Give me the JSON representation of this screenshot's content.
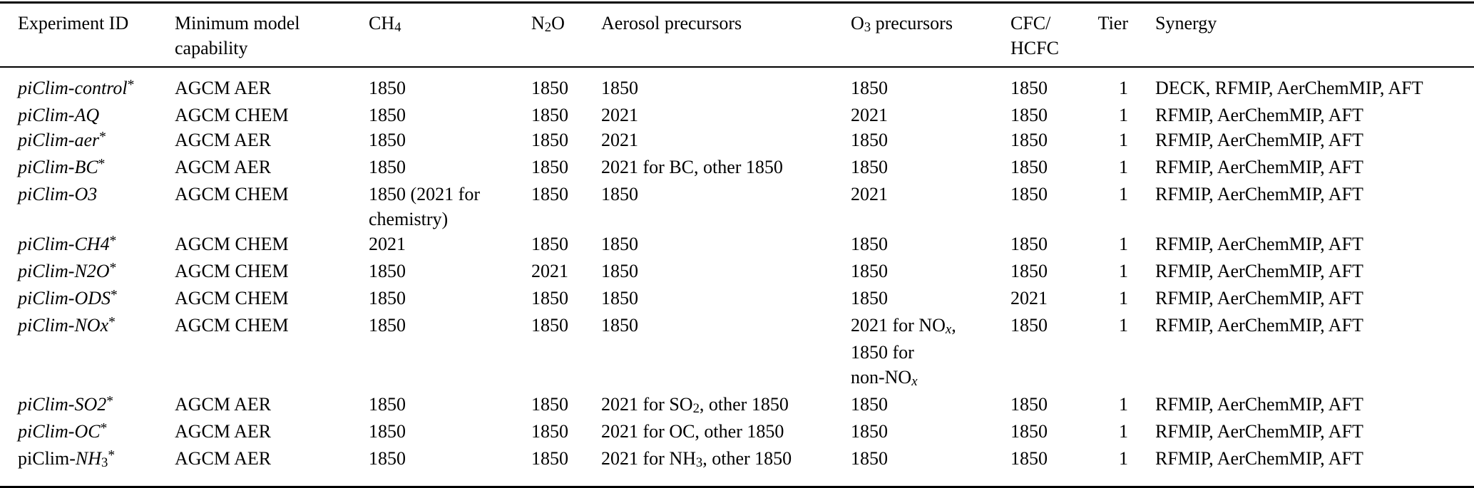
{
  "colors": {
    "text": "#000000",
    "background": "#ffffff",
    "rule": "#000000"
  },
  "table": {
    "columns": [
      {
        "id": "experiment-id",
        "label": "Experiment ID"
      },
      {
        "id": "min-model-capability",
        "label": "Minimum model capability"
      },
      {
        "id": "ch4",
        "label": [
          {
            "t": "CH"
          },
          {
            "t": "4",
            "s": "sub"
          }
        ]
      },
      {
        "id": "n2o",
        "label": [
          {
            "t": "N"
          },
          {
            "t": "2",
            "s": "sub"
          },
          {
            "t": "O"
          }
        ]
      },
      {
        "id": "aerosol-precursors",
        "label": "Aerosol precursors"
      },
      {
        "id": "o3-precursors",
        "label": [
          {
            "t": "O"
          },
          {
            "t": "3",
            "s": "sub"
          },
          {
            "t": " precursors"
          }
        ]
      },
      {
        "id": "cfc-hcfc",
        "label": [
          {
            "t": "CFC/"
          },
          {
            "s": "br"
          },
          {
            "t": "HCFC"
          }
        ]
      },
      {
        "id": "tier",
        "label": "Tier"
      },
      {
        "id": "synergy",
        "label": "Synergy"
      }
    ],
    "rows": [
      {
        "cells": [
          [
            {
              "t": "piClim-control",
              "s": "i"
            },
            {
              "t": "*",
              "s": "sup"
            }
          ],
          "AGCM AER",
          "1850",
          "1850",
          "1850",
          "1850",
          "1850",
          "1",
          "DECK, RFMIP, AerChemMIP, AFT"
        ]
      },
      {
        "cells": [
          [
            {
              "t": "piClim-AQ",
              "s": "i"
            }
          ],
          "AGCM CHEM",
          "1850",
          "1850",
          "2021",
          "2021",
          "1850",
          "1",
          "RFMIP, AerChemMIP, AFT"
        ]
      },
      {
        "cells": [
          [
            {
              "t": "piClim-aer",
              "s": "i"
            },
            {
              "t": "*",
              "s": "sup"
            }
          ],
          "AGCM AER",
          "1850",
          "1850",
          "2021",
          "1850",
          "1850",
          "1",
          "RFMIP, AerChemMIP, AFT"
        ]
      },
      {
        "cells": [
          [
            {
              "t": "piClim-BC",
              "s": "i"
            },
            {
              "t": "*",
              "s": "sup"
            }
          ],
          "AGCM AER",
          "1850",
          "1850",
          "2021 for BC, other 1850",
          "1850",
          "1850",
          "1",
          "RFMIP, AerChemMIP, AFT"
        ]
      },
      {
        "cells": [
          [
            {
              "t": "piClim-O3",
              "s": "i"
            }
          ],
          "AGCM CHEM",
          [
            {
              "t": "1850 (2021 for"
            },
            {
              "s": "br"
            },
            {
              "t": "chemistry)"
            }
          ],
          "1850",
          "1850",
          "2021",
          "1850",
          "1",
          "RFMIP, AerChemMIP, AFT"
        ]
      },
      {
        "cells": [
          [
            {
              "t": "piClim-CH4",
              "s": "i"
            },
            {
              "t": "*",
              "s": "sup"
            }
          ],
          "AGCM CHEM",
          "2021",
          "1850",
          "1850",
          "1850",
          "1850",
          "1",
          "RFMIP, AerChemMIP, AFT"
        ]
      },
      {
        "cells": [
          [
            {
              "t": "piClim-N2O",
              "s": "i"
            },
            {
              "t": "*",
              "s": "sup"
            }
          ],
          "AGCM CHEM",
          "1850",
          "2021",
          "1850",
          "1850",
          "1850",
          "1",
          "RFMIP, AerChemMIP, AFT"
        ]
      },
      {
        "cells": [
          [
            {
              "t": "piClim-ODS",
              "s": "i"
            },
            {
              "t": "*",
              "s": "sup"
            }
          ],
          "AGCM CHEM",
          "1850",
          "1850",
          "1850",
          "1850",
          "2021",
          "1",
          "RFMIP, AerChemMIP, AFT"
        ]
      },
      {
        "cells": [
          [
            {
              "t": "piClim-NOx",
              "s": "i"
            },
            {
              "t": "*",
              "s": "sup"
            }
          ],
          "AGCM CHEM",
          "1850",
          "1850",
          "1850",
          [
            {
              "t": "2021 for NO"
            },
            {
              "t": "x",
              "s": "isub"
            },
            {
              "t": ","
            },
            {
              "s": "br"
            },
            {
              "t": "1850 for"
            },
            {
              "s": "br"
            },
            {
              "t": "non-NO"
            },
            {
              "t": "x",
              "s": "isub"
            }
          ],
          "1850",
          "1",
          "RFMIP, AerChemMIP, AFT"
        ]
      },
      {
        "cells": [
          [
            {
              "t": "piClim-SO2",
              "s": "i"
            },
            {
              "t": "*",
              "s": "sup"
            }
          ],
          "AGCM AER",
          "1850",
          "1850",
          [
            {
              "t": "2021 for SO"
            },
            {
              "t": "2",
              "s": "sub"
            },
            {
              "t": ", other 1850"
            }
          ],
          "1850",
          "1850",
          "1",
          "RFMIP, AerChemMIP, AFT"
        ]
      },
      {
        "cells": [
          [
            {
              "t": "piClim-OC",
              "s": "i"
            },
            {
              "t": "*",
              "s": "sup"
            }
          ],
          "AGCM AER",
          "1850",
          "1850",
          "2021 for OC, other 1850",
          "1850",
          "1850",
          "1",
          "RFMIP, AerChemMIP, AFT"
        ]
      },
      {
        "cells": [
          [
            {
              "t": "piClim-"
            },
            {
              "t": "NH",
              "s": "i"
            },
            {
              "t": "3",
              "s": "sub"
            },
            {
              "t": "*",
              "s": "sup"
            }
          ],
          "AGCM AER",
          "1850",
          "1850",
          [
            {
              "t": "2021 for NH"
            },
            {
              "t": "3",
              "s": "sub"
            },
            {
              "t": ", other 1850"
            }
          ],
          "1850",
          "1850",
          "1",
          "RFMIP, AerChemMIP, AFT"
        ]
      }
    ]
  }
}
